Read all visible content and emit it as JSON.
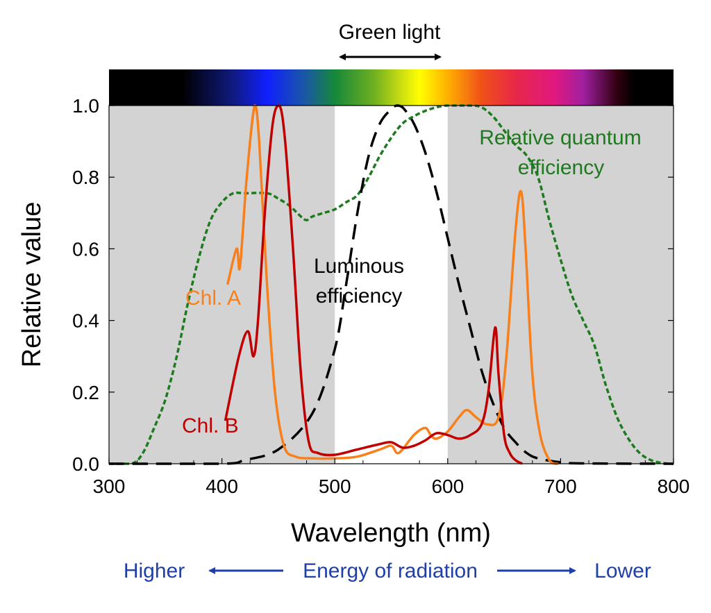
{
  "chart_data": {
    "type": "line",
    "title": "",
    "xlabel": "Wavelength (nm)",
    "ylabel": "Relative value",
    "xlim": [
      300,
      800
    ],
    "ylim": [
      0,
      1.0
    ],
    "xticks": [
      "300",
      "400",
      "500",
      "600",
      "700",
      "800"
    ],
    "yticks": [
      "0.0",
      "0.2",
      "0.4",
      "0.6",
      "0.8",
      "1.0"
    ],
    "grid": false,
    "shaded_regions": [
      {
        "from": 300,
        "to": 500,
        "color": "#d3d3d3"
      },
      {
        "from": 600,
        "to": 800,
        "color": "#d3d3d3"
      }
    ],
    "spectrum_bar": true,
    "series": [
      {
        "name": "Chl. A",
        "color": "#f8801c",
        "style": "solid",
        "x": [
          405,
          413,
          416,
          422,
          429,
          433,
          440,
          447,
          455,
          465,
          480,
          500,
          520,
          540,
          550,
          555,
          560,
          570,
          580,
          585,
          590,
          600,
          610,
          617,
          625,
          635,
          645,
          652,
          660,
          665,
          669,
          675,
          682,
          690,
          695,
          698
        ],
        "y": [
          0.5,
          0.6,
          0.55,
          0.8,
          1.0,
          0.9,
          0.5,
          0.2,
          0.05,
          0.02,
          0.015,
          0.015,
          0.02,
          0.04,
          0.05,
          0.03,
          0.04,
          0.08,
          0.1,
          0.08,
          0.07,
          0.09,
          0.13,
          0.15,
          0.13,
          0.11,
          0.13,
          0.3,
          0.65,
          0.76,
          0.6,
          0.25,
          0.08,
          0.01,
          0.0,
          0.0
        ]
      },
      {
        "name": "Chl. B",
        "color": "#c00000",
        "style": "solid",
        "x": [
          403,
          415,
          423,
          428,
          432,
          438,
          445,
          451,
          456,
          463,
          470,
          477,
          485,
          500,
          520,
          540,
          550,
          560,
          570,
          580,
          590,
          600,
          610,
          620,
          630,
          636,
          642,
          645,
          650,
          655,
          660,
          666
        ],
        "y": [
          0.12,
          0.3,
          0.37,
          0.3,
          0.4,
          0.7,
          0.95,
          1.0,
          0.9,
          0.6,
          0.25,
          0.06,
          0.03,
          0.025,
          0.04,
          0.055,
          0.06,
          0.045,
          0.05,
          0.065,
          0.085,
          0.08,
          0.07,
          0.08,
          0.11,
          0.2,
          0.38,
          0.25,
          0.08,
          0.03,
          0.01,
          0.0
        ]
      },
      {
        "name": "Luminous efficiency",
        "color": "#000000",
        "style": "dashed",
        "x": [
          300,
          400,
          420,
          450,
          480,
          500,
          510,
          520,
          530,
          540,
          550,
          555,
          560,
          570,
          580,
          590,
          600,
          610,
          620,
          630,
          640,
          650,
          660,
          670,
          680,
          700,
          720,
          800
        ],
        "y": [
          0,
          0,
          0.01,
          0.04,
          0.14,
          0.32,
          0.5,
          0.7,
          0.86,
          0.95,
          0.99,
          1.0,
          0.995,
          0.95,
          0.87,
          0.76,
          0.63,
          0.5,
          0.38,
          0.26,
          0.17,
          0.1,
          0.06,
          0.03,
          0.015,
          0.004,
          0.001,
          0
        ]
      },
      {
        "name": "Relative quantum efficiency",
        "color": "#1e7a1e",
        "style": "dotted",
        "x": [
          300,
          320,
          330,
          340,
          350,
          360,
          370,
          380,
          390,
          400,
          410,
          420,
          440,
          450,
          460,
          470,
          475,
          480,
          490,
          500,
          510,
          520,
          530,
          540,
          550,
          560,
          570,
          580,
          590,
          600,
          620,
          630,
          640,
          650,
          660,
          670,
          680,
          690,
          700,
          710,
          720,
          730,
          740,
          750,
          760,
          770,
          780,
          790,
          800
        ],
        "y": [
          0,
          0,
          0.03,
          0.1,
          0.18,
          0.3,
          0.45,
          0.58,
          0.68,
          0.73,
          0.755,
          0.755,
          0.755,
          0.74,
          0.72,
          0.69,
          0.68,
          0.69,
          0.7,
          0.71,
          0.73,
          0.75,
          0.8,
          0.86,
          0.91,
          0.95,
          0.97,
          0.985,
          0.995,
          1.0,
          1.0,
          0.995,
          0.97,
          0.93,
          0.89,
          0.86,
          0.8,
          0.68,
          0.57,
          0.47,
          0.4,
          0.33,
          0.22,
          0.13,
          0.07,
          0.03,
          0.01,
          0.002,
          0
        ]
      }
    ],
    "annotations": {
      "green_light": "Green light",
      "chl_a": "Chl. A",
      "chl_b": "Chl. B",
      "luminous_1": "Luminous",
      "luminous_2": "efficiency",
      "quantum_1": "Relative quantum",
      "quantum_2": "efficiency"
    },
    "energy_axis": {
      "left": "Higher",
      "center": "Energy of radiation",
      "right": "Lower",
      "color": "#1f3fa8"
    }
  }
}
